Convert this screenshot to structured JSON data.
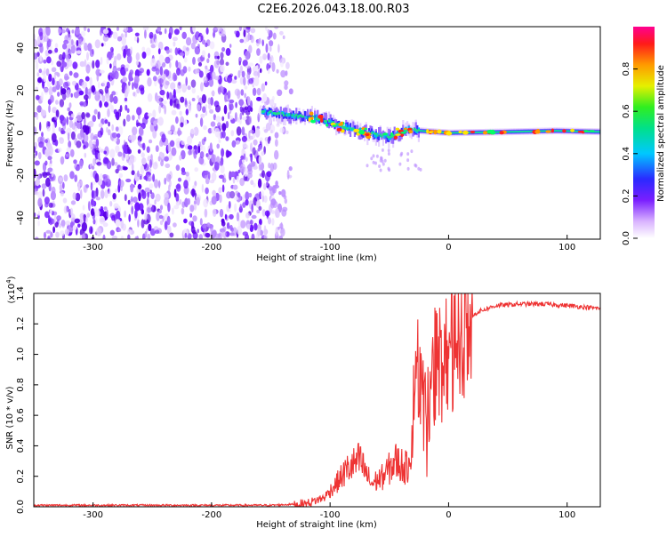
{
  "title": "C2E6.2026.043.18.00.R03",
  "chart_data": [
    {
      "type": "heatmap",
      "name": "spectrogram",
      "xlabel": "Height of straight line (km)",
      "ylabel": "Frequency (Hz)",
      "xlim": [
        -350,
        128
      ],
      "ylim": [
        -50,
        50
      ],
      "xticks": [
        -300,
        -200,
        -100,
        0,
        100
      ],
      "yticks": [
        -40,
        -20,
        0,
        20,
        40
      ],
      "noise_region": [
        -350,
        -130
      ],
      "band_center_freq": [
        {
          "x": -155,
          "y": 10
        },
        {
          "x": -130,
          "y": 8
        },
        {
          "x": -110,
          "y": 7
        },
        {
          "x": -90,
          "y": 3
        },
        {
          "x": -70,
          "y": 0
        },
        {
          "x": -50,
          "y": -2
        },
        {
          "x": -35,
          "y": 2
        },
        {
          "x": -25,
          "y": 1
        },
        {
          "x": 0,
          "y": 0
        },
        {
          "x": 50,
          "y": 0.5
        },
        {
          "x": 90,
          "y": 1
        },
        {
          "x": 128,
          "y": 0.5
        }
      ],
      "colorbar": {
        "label": "Normalized spectral amplitude",
        "ticks": [
          0.0,
          0.2,
          0.4,
          0.6,
          0.8
        ],
        "range": [
          0,
          1
        ]
      }
    },
    {
      "type": "line",
      "name": "snr",
      "xlabel": "Height of straight line (km)",
      "ylabel": "SNR (10 * v/v)",
      "multiplier_label": "(x10",
      "multiplier_exp": "4",
      "xlim": [
        -350,
        128
      ],
      "ylim": [
        0,
        1.4
      ],
      "xticks": [
        -300,
        -200,
        -100,
        0,
        100
      ],
      "yticks": [
        0.0,
        0.2,
        0.4,
        0.6,
        0.8,
        1.0,
        1.2,
        1.4
      ],
      "color": "#ee3333",
      "points": [
        {
          "x": -350,
          "y": 0.01
        },
        {
          "x": -150,
          "y": 0.01
        },
        {
          "x": -120,
          "y": 0.02
        },
        {
          "x": -105,
          "y": 0.06
        },
        {
          "x": -95,
          "y": 0.15
        },
        {
          "x": -85,
          "y": 0.25
        },
        {
          "x": -75,
          "y": 0.3
        },
        {
          "x": -65,
          "y": 0.15
        },
        {
          "x": -55,
          "y": 0.2
        },
        {
          "x": -45,
          "y": 0.3
        },
        {
          "x": -35,
          "y": 0.25
        },
        {
          "x": -28,
          "y": 0.6
        },
        {
          "x": -25,
          "y": 0.9
        },
        {
          "x": -20,
          "y": 0.6
        },
        {
          "x": -15,
          "y": 0.85
        },
        {
          "x": -10,
          "y": 0.95
        },
        {
          "x": -5,
          "y": 1.0
        },
        {
          "x": 0,
          "y": 0.95
        },
        {
          "x": 5,
          "y": 1.05
        },
        {
          "x": 10,
          "y": 1.15
        },
        {
          "x": 15,
          "y": 1.22
        },
        {
          "x": 25,
          "y": 1.28
        },
        {
          "x": 40,
          "y": 1.32
        },
        {
          "x": 60,
          "y": 1.33
        },
        {
          "x": 80,
          "y": 1.33
        },
        {
          "x": 100,
          "y": 1.32
        },
        {
          "x": 115,
          "y": 1.31
        },
        {
          "x": 128,
          "y": 1.3
        }
      ]
    }
  ]
}
